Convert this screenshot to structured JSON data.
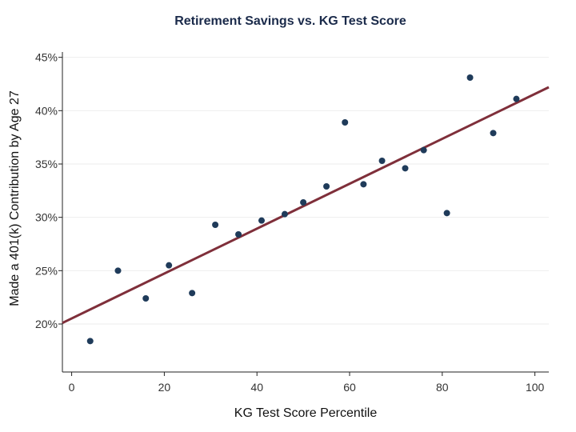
{
  "chart_data": {
    "type": "scatter",
    "title": "Retirement Savings vs. KG Test Score",
    "xlabel": "KG Test Score Percentile",
    "ylabel": "Made a 401(k) Contribution by Age 27",
    "xlim": [
      -2,
      103
    ],
    "ylim": [
      15.5,
      45.5
    ],
    "xticks": [
      0,
      20,
      40,
      60,
      80,
      100
    ],
    "xtick_labels": [
      "0",
      "20",
      "40",
      "60",
      "80",
      "100"
    ],
    "yticks": [
      20,
      25,
      30,
      35,
      40,
      45
    ],
    "ytick_labels": [
      "20%",
      "25%",
      "30%",
      "35%",
      "40%",
      "45%"
    ],
    "grid": "horizontal",
    "legend": "none",
    "series": [
      {
        "x": [
          4,
          10,
          16,
          21,
          26,
          31,
          36,
          41,
          46,
          50,
          55,
          59,
          63,
          67,
          72,
          76,
          81,
          86,
          91,
          96
        ],
        "y": [
          18.4,
          25.0,
          22.4,
          25.5,
          22.9,
          29.3,
          28.4,
          29.7,
          30.3,
          31.4,
          32.9,
          38.9,
          33.1,
          35.3,
          34.6,
          36.3,
          30.4,
          43.1,
          37.9,
          41.1
        ]
      }
    ],
    "fit_line": {
      "x": [
        -2,
        103
      ],
      "y": [
        20.1,
        42.2
      ]
    },
    "colors": {
      "points": "#1f3b5a",
      "fit_line": "#7f2f3a",
      "title": "#1a2a4a"
    }
  }
}
